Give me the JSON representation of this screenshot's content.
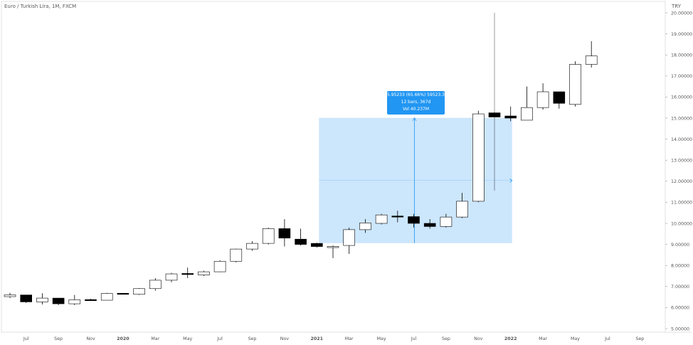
{
  "header": {
    "title": "Euro / Turkish Lira, 1M, FXCM",
    "unit": "TRY"
  },
  "measure_tooltip": {
    "line1": "5.95233 (65.66%) 59523.3",
    "line2": "12 bars, 367d",
    "line3": "Vol 40.237M"
  },
  "colors": {
    "up_body": "#ffffff",
    "down_body": "#000000",
    "wick": "#000000",
    "measure_fill": "#bbdefb",
    "measure_line": "#2196f3",
    "axis_text": "#555555",
    "border": "#e0e0e0"
  },
  "chart_data": {
    "type": "candlestick",
    "title": "Euro / Turkish Lira, 1M, FXCM",
    "ylabel": "TRY",
    "ylim": [
      5.0,
      20.0
    ],
    "y_ticks": [
      "20.00000",
      "19.00000",
      "18.00000",
      "17.00000",
      "16.00000",
      "15.00000",
      "14.00000",
      "13.00000",
      "12.00000",
      "11.00000",
      "10.00000",
      "9.00000",
      "8.00000",
      "7.00000",
      "6.00000",
      "5.00000"
    ],
    "x_ticks": [
      "Jul",
      "Sep",
      "Nov",
      "2020",
      "Mar",
      "May",
      "Jul",
      "Sep",
      "Nov",
      "2021",
      "Mar",
      "May",
      "Jul",
      "Sep",
      "Nov",
      "2022",
      "Mar",
      "May",
      "Jul",
      "Sep"
    ],
    "x_ticks_bold": [
      "2020",
      "2021",
      "2022"
    ],
    "candles": [
      {
        "date": "2019-06",
        "open": 6.52,
        "high": 6.7,
        "low": 6.45,
        "close": 6.6
      },
      {
        "date": "2019-07",
        "open": 6.6,
        "high": 6.6,
        "low": 6.22,
        "close": 6.27
      },
      {
        "date": "2019-08",
        "open": 6.27,
        "high": 6.68,
        "low": 6.15,
        "close": 6.45
      },
      {
        "date": "2019-09",
        "open": 6.45,
        "high": 6.45,
        "low": 6.12,
        "close": 6.18
      },
      {
        "date": "2019-10",
        "open": 6.18,
        "high": 6.6,
        "low": 6.12,
        "close": 6.37
      },
      {
        "date": "2019-11",
        "open": 6.38,
        "high": 6.42,
        "low": 6.32,
        "close": 6.34
      },
      {
        "date": "2019-12",
        "open": 6.35,
        "high": 6.7,
        "low": 6.35,
        "close": 6.67
      },
      {
        "date": "2020-01",
        "open": 6.68,
        "high": 6.69,
        "low": 6.62,
        "close": 6.63
      },
      {
        "date": "2020-02",
        "open": 6.63,
        "high": 6.92,
        "low": 6.6,
        "close": 6.9
      },
      {
        "date": "2020-03",
        "open": 6.9,
        "high": 7.4,
        "low": 6.8,
        "close": 7.3
      },
      {
        "date": "2020-04",
        "open": 7.3,
        "high": 7.65,
        "low": 7.2,
        "close": 7.6
      },
      {
        "date": "2020-05",
        "open": 7.62,
        "high": 7.9,
        "low": 7.4,
        "close": 7.58
      },
      {
        "date": "2020-06",
        "open": 7.55,
        "high": 7.75,
        "low": 7.5,
        "close": 7.7
      },
      {
        "date": "2020-07",
        "open": 7.7,
        "high": 8.25,
        "low": 7.68,
        "close": 8.2
      },
      {
        "date": "2020-08",
        "open": 8.2,
        "high": 8.8,
        "low": 8.15,
        "close": 8.78
      },
      {
        "date": "2020-09",
        "open": 8.78,
        "high": 9.15,
        "low": 8.7,
        "close": 9.05
      },
      {
        "date": "2020-10",
        "open": 9.05,
        "high": 9.8,
        "low": 9.0,
        "close": 9.75
      },
      {
        "date": "2020-11",
        "open": 9.75,
        "high": 10.2,
        "low": 8.9,
        "close": 9.3
      },
      {
        "date": "2020-12",
        "open": 9.25,
        "high": 9.75,
        "low": 8.95,
        "close": 9.0
      },
      {
        "date": "2021-01",
        "open": 9.05,
        "high": 9.08,
        "low": 8.85,
        "close": 8.9
      },
      {
        "date": "2021-02",
        "open": 8.88,
        "high": 8.95,
        "low": 8.35,
        "close": 8.9
      },
      {
        "date": "2021-03",
        "open": 8.95,
        "high": 9.8,
        "low": 8.55,
        "close": 9.7
      },
      {
        "date": "2021-04",
        "open": 9.7,
        "high": 10.2,
        "low": 9.55,
        "close": 10.02
      },
      {
        "date": "2021-05",
        "open": 10.0,
        "high": 10.45,
        "low": 9.95,
        "close": 10.4
      },
      {
        "date": "2021-06",
        "open": 10.35,
        "high": 10.6,
        "low": 10.05,
        "close": 10.3
      },
      {
        "date": "2021-07",
        "open": 10.32,
        "high": 10.45,
        "low": 9.8,
        "close": 10.0
      },
      {
        "date": "2021-08",
        "open": 10.0,
        "high": 10.2,
        "low": 9.75,
        "close": 9.85
      },
      {
        "date": "2021-09",
        "open": 9.85,
        "high": 10.45,
        "low": 9.8,
        "close": 10.3
      },
      {
        "date": "2021-10",
        "open": 10.3,
        "high": 11.45,
        "low": 10.25,
        "close": 11.05
      },
      {
        "date": "2021-11",
        "open": 11.05,
        "high": 15.35,
        "low": 11.0,
        "close": 15.2
      },
      {
        "date": "2021-12",
        "open": 15.25,
        "high": 20.0,
        "low": 11.55,
        "close": 15.05
      },
      {
        "date": "2022-01",
        "open": 15.1,
        "high": 15.55,
        "low": 14.85,
        "close": 15.0
      },
      {
        "date": "2022-02",
        "open": 14.9,
        "high": 16.5,
        "low": 14.9,
        "close": 15.5
      },
      {
        "date": "2022-03",
        "open": 15.5,
        "high": 16.65,
        "low": 15.4,
        "close": 16.25
      },
      {
        "date": "2022-04",
        "open": 16.25,
        "high": 16.25,
        "low": 15.45,
        "close": 15.7
      },
      {
        "date": "2022-05",
        "open": 15.65,
        "high": 17.7,
        "low": 15.55,
        "close": 17.55
      },
      {
        "date": "2022-06",
        "open": 17.55,
        "high": 18.65,
        "low": 17.4,
        "close": 17.95
      }
    ]
  }
}
